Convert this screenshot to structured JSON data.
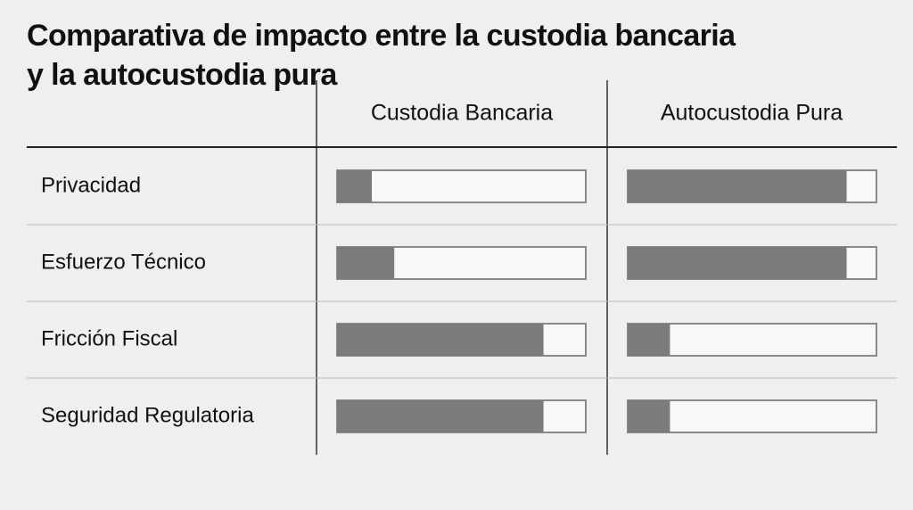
{
  "chart_data": {
    "type": "bar",
    "title": "Comparativa de impacto entre la custodia bancaria y la autocustodia pura",
    "categories": [
      "Privacidad",
      "Esfuerzo Técnico",
      "Fricción Fiscal",
      "Seguridad Regulatoria"
    ],
    "series": [
      {
        "name": "Custodia Bancaria",
        "color": "#7a7b7d",
        "values": [
          14,
          23,
          83,
          83
        ]
      },
      {
        "name": "Autocustodia Pura",
        "color": "#7a7b7d",
        "values": [
          88,
          88,
          17,
          17
        ]
      }
    ],
    "xlim": [
      0,
      100
    ]
  }
}
